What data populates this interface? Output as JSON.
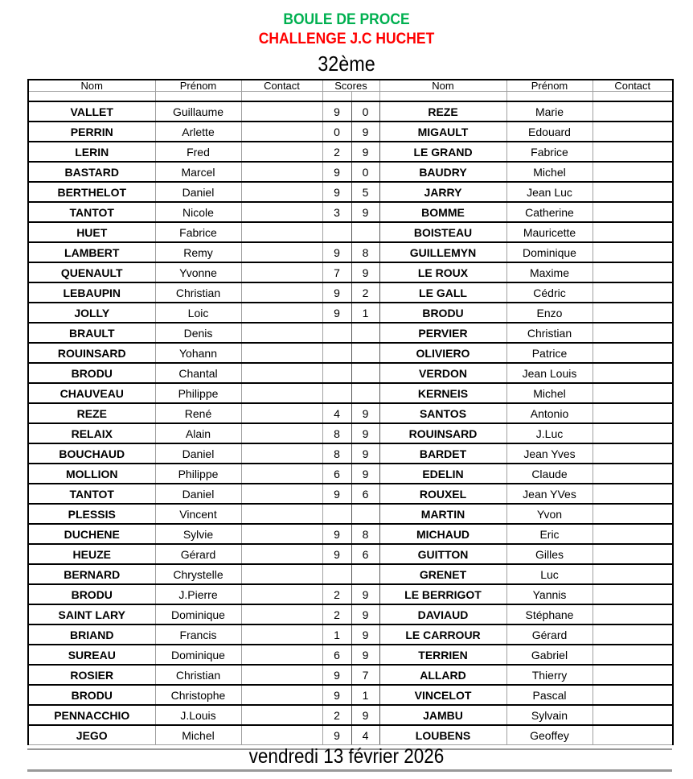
{
  "title": "BOULE DE PROCE",
  "subtitle": "CHALLENGE J.C HUCHET",
  "edition": "32ème",
  "headers": {
    "nom": "Nom",
    "prenom": "Prénom",
    "contact": "Contact",
    "scores": "Scores"
  },
  "colors": {
    "title": "#00b050",
    "subtitle": "#ff0000"
  },
  "rows": [
    [
      "VALLET",
      "Guillaume",
      "9",
      "0",
      "REZE",
      "Marie"
    ],
    [
      "PERRIN",
      "Arlette",
      "0",
      "9",
      "MIGAULT",
      "Edouard"
    ],
    [
      "LERIN",
      "Fred",
      "2",
      "9",
      "LE GRAND",
      "Fabrice"
    ],
    [
      "BASTARD",
      "Marcel",
      "9",
      "0",
      "BAUDRY",
      "Michel"
    ],
    [
      "BERTHELOT",
      "Daniel",
      "9",
      "5",
      "JARRY",
      "Jean Luc"
    ],
    [
      "TANTOT",
      "Nicole",
      "3",
      "9",
      "BOMME",
      "Catherine"
    ],
    [
      "HUET",
      "Fabrice",
      "",
      "",
      "BOISTEAU",
      "Mauricette"
    ],
    [
      "LAMBERT",
      "Remy",
      "9",
      "8",
      "GUILLEMYN",
      "Dominique"
    ],
    [
      "QUENAULT",
      "Yvonne",
      "7",
      "9",
      "LE ROUX",
      "Maxime"
    ],
    [
      "LEBAUPIN",
      "Christian",
      "9",
      "2",
      "LE GALL",
      "Cédric"
    ],
    [
      "JOLLY",
      "Loic",
      "9",
      "1",
      "BRODU",
      "Enzo"
    ],
    [
      "BRAULT",
      "Denis",
      "",
      "",
      "PERVIER",
      "Christian"
    ],
    [
      "ROUINSARD",
      "Yohann",
      "",
      "",
      "OLIVIERO",
      "Patrice"
    ],
    [
      "BRODU",
      "Chantal",
      "",
      "",
      "VERDON",
      "Jean Louis"
    ],
    [
      "CHAUVEAU",
      "Philippe",
      "",
      "",
      "KERNEIS",
      "Michel"
    ],
    [
      "REZE",
      "René",
      "4",
      "9",
      "SANTOS",
      "Antonio"
    ],
    [
      "RELAIX",
      "Alain",
      "8",
      "9",
      "ROUINSARD",
      "J.Luc"
    ],
    [
      "BOUCHAUD",
      "Daniel",
      "8",
      "9",
      "BARDET",
      "Jean Yves"
    ],
    [
      "MOLLION",
      "Philippe",
      "6",
      "9",
      "EDELIN",
      "Claude"
    ],
    [
      "TANTOT",
      "Daniel",
      "9",
      "6",
      "ROUXEL",
      "Jean YVes"
    ],
    [
      "PLESSIS",
      "Vincent",
      "",
      "",
      "MARTIN",
      "Yvon"
    ],
    [
      "DUCHENE",
      "Sylvie",
      "9",
      "8",
      "MICHAUD",
      "Eric"
    ],
    [
      "HEUZE",
      "Gérard",
      "9",
      "6",
      "GUITTON",
      "Gilles"
    ],
    [
      "BERNARD",
      "Chrystelle",
      "",
      "",
      "GRENET",
      "Luc"
    ],
    [
      "BRODU",
      "J.Pierre",
      "2",
      "9",
      "LE BERRIGOT",
      "Yannis"
    ],
    [
      "SAINT LARY",
      "Dominique",
      "2",
      "9",
      "DAVIAUD",
      "Stéphane"
    ],
    [
      "BRIAND",
      "Francis",
      "1",
      "9",
      "LE CARROUR",
      "Gérard"
    ],
    [
      "SUREAU",
      "Dominique",
      "6",
      "9",
      "TERRIEN",
      "Gabriel"
    ],
    [
      "ROSIER",
      "Christian",
      "9",
      "7",
      "ALLARD",
      "Thierry"
    ],
    [
      "BRODU",
      "Christophe",
      "9",
      "1",
      "VINCELOT",
      "Pascal"
    ],
    [
      "PENNACCHIO",
      "J.Louis",
      "2",
      "9",
      "JAMBU",
      "Sylvain"
    ],
    [
      "JEGO",
      "Michel",
      "9",
      "4",
      "LOUBENS",
      "Geoffey"
    ]
  ],
  "footer": "vendredi 13 février 2026"
}
